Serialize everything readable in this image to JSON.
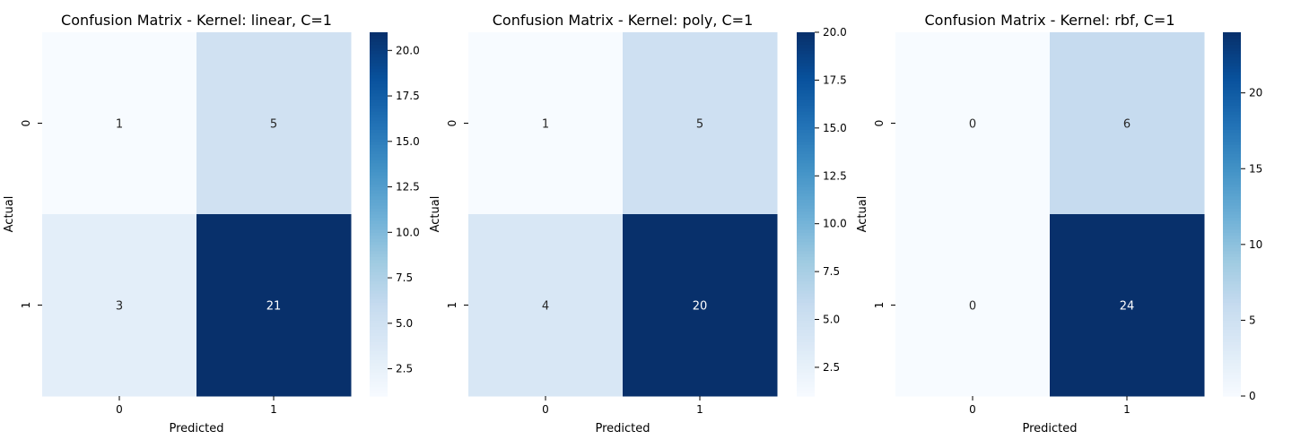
{
  "chart_data": [
    {
      "type": "heatmap",
      "title": "Confusion Matrix - Kernel: linear, C=1",
      "xlabel": "Predicted",
      "ylabel": "Actual",
      "x_categories": [
        "0",
        "1"
      ],
      "y_categories": [
        "0",
        "1"
      ],
      "values": [
        [
          1,
          5
        ],
        [
          3,
          21
        ]
      ],
      "colorbar": {
        "range": [
          1,
          21
        ],
        "ticks": [
          "2.5",
          "5.0",
          "7.5",
          "10.0",
          "12.5",
          "15.0",
          "17.5",
          "20.0"
        ],
        "colormap": "Blues"
      }
    },
    {
      "type": "heatmap",
      "title": "Confusion Matrix - Kernel: poly, C=1",
      "xlabel": "Predicted",
      "ylabel": "Actual",
      "x_categories": [
        "0",
        "1"
      ],
      "y_categories": [
        "0",
        "1"
      ],
      "values": [
        [
          1,
          5
        ],
        [
          4,
          20
        ]
      ],
      "colorbar": {
        "range": [
          1,
          20
        ],
        "ticks": [
          "2.5",
          "5.0",
          "7.5",
          "10.0",
          "12.5",
          "15.0",
          "17.5",
          "20.0"
        ],
        "colormap": "Blues"
      }
    },
    {
      "type": "heatmap",
      "title": "Confusion Matrix - Kernel: rbf, C=1",
      "xlabel": "Predicted",
      "ylabel": "Actual",
      "x_categories": [
        "0",
        "1"
      ],
      "y_categories": [
        "0",
        "1"
      ],
      "values": [
        [
          0,
          6
        ],
        [
          0,
          24
        ]
      ],
      "colorbar": {
        "range": [
          0,
          24
        ],
        "ticks": [
          "0",
          "5",
          "10",
          "15",
          "20"
        ],
        "colormap": "Blues"
      }
    }
  ]
}
